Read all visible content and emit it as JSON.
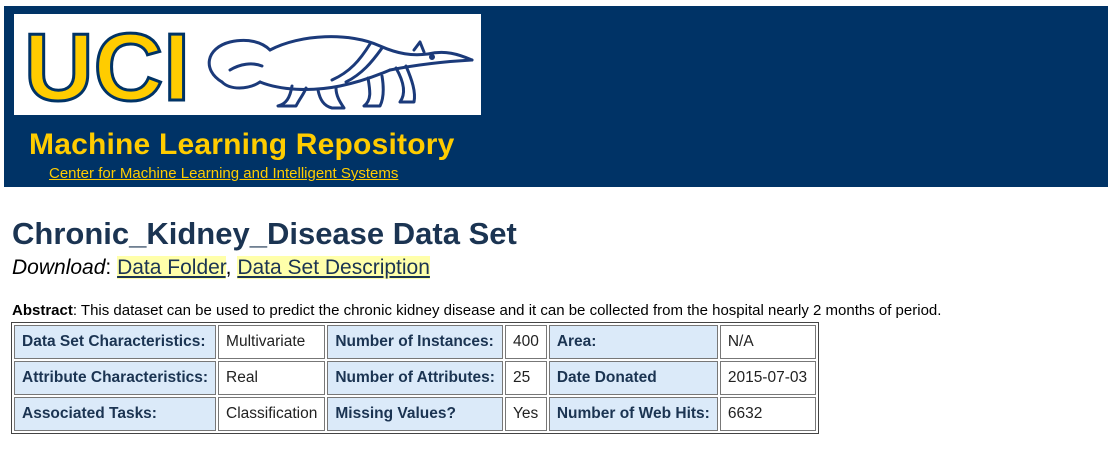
{
  "header": {
    "logo_text": "UCI",
    "logo_icon": "anteater-icon",
    "repository_title": "Machine Learning Repository",
    "center_link": "Center for Machine Learning and Intelligent Systems"
  },
  "page": {
    "title": "Chronic_Kidney_Disease Data Set",
    "download_label": "Download",
    "download_links": [
      "Data Folder",
      "Data Set Description"
    ],
    "abstract_label": "Abstract",
    "abstract_text": ": This dataset can be used to predict the chronic kidney disease and it can be collected from the hospital nearly 2 months of period."
  },
  "info_table": {
    "rows": [
      [
        {
          "label": "Data Set Characteristics:",
          "value": "Multivariate"
        },
        {
          "label": "Number of Instances:",
          "value": "400"
        },
        {
          "label": "Area:",
          "value": "N/A"
        }
      ],
      [
        {
          "label": "Attribute Characteristics:",
          "value": "Real"
        },
        {
          "label": "Number of Attributes:",
          "value": "25"
        },
        {
          "label": "Date Donated",
          "value": "2015-07-03"
        }
      ],
      [
        {
          "label": "Associated Tasks:",
          "value": "Classification"
        },
        {
          "label": "Missing Values?",
          "value": "Yes"
        },
        {
          "label": "Number of Web Hits:",
          "value": "6632"
        }
      ]
    ]
  },
  "colors": {
    "banner": "#003366",
    "accent": "#ffcc00",
    "title": "#1b3452",
    "label_cell": "#dbeaf9",
    "link_highlight": "#ffffaa"
  }
}
